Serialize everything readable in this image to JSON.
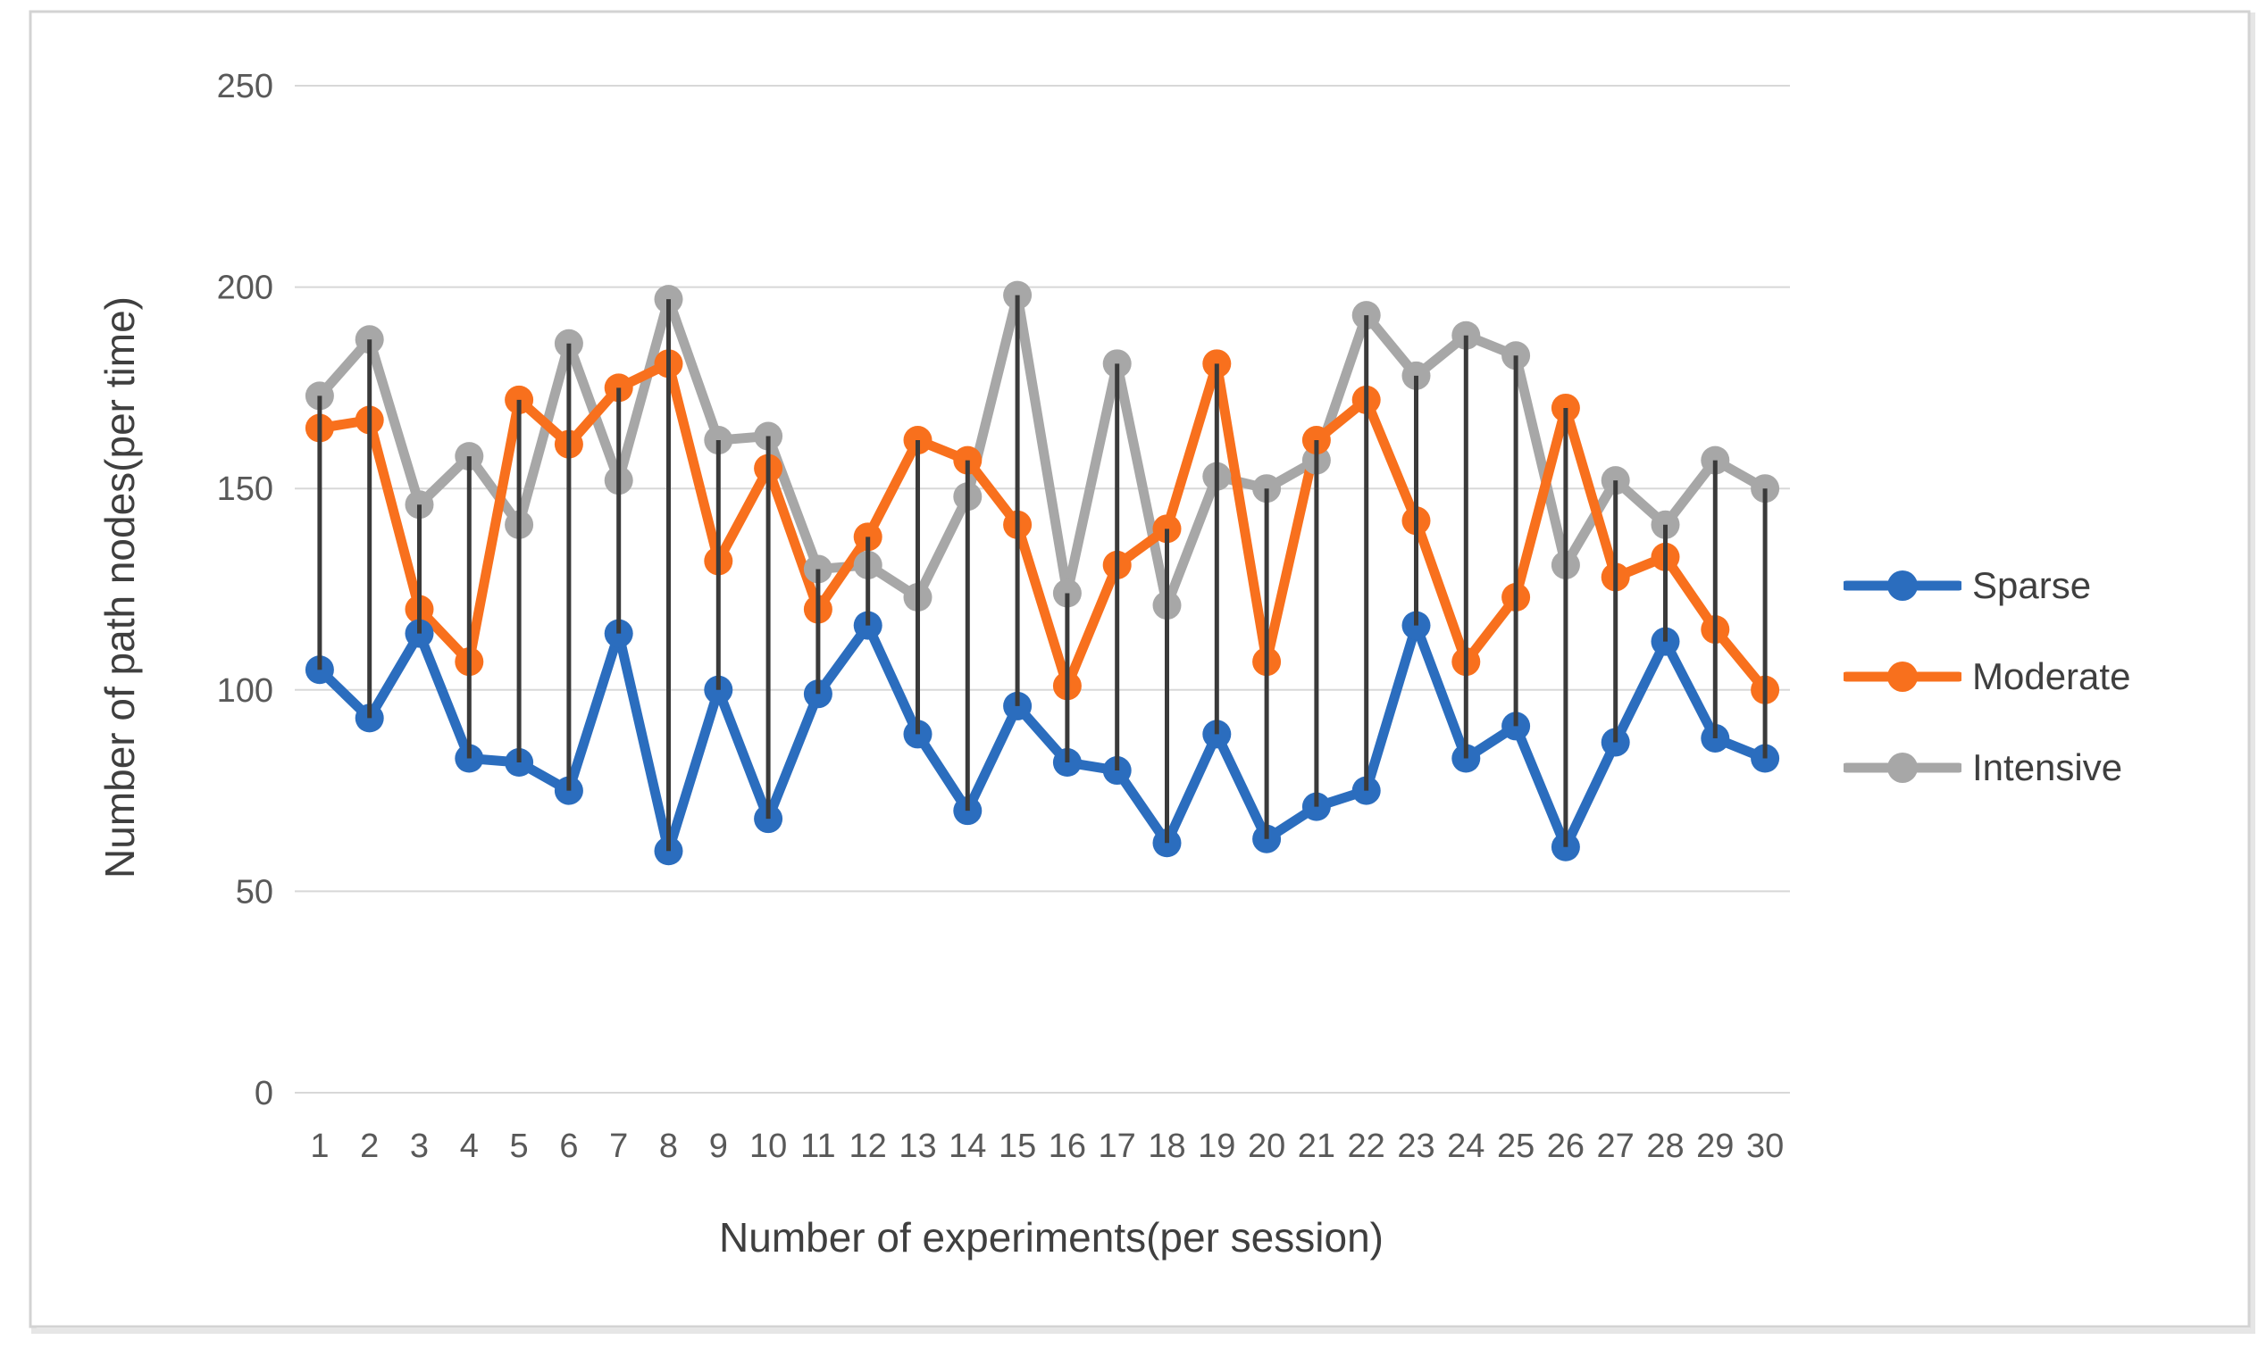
{
  "chart_data": {
    "type": "line",
    "title": "",
    "xlabel": "Number of experiments(per session)",
    "ylabel": "Number of path nodes(per time)",
    "x": [
      1,
      2,
      3,
      4,
      5,
      6,
      7,
      8,
      9,
      10,
      11,
      12,
      13,
      14,
      15,
      16,
      17,
      18,
      19,
      20,
      21,
      22,
      23,
      24,
      25,
      26,
      27,
      28,
      29,
      30
    ],
    "ylim": [
      0,
      250
    ],
    "y_ticks": [
      0,
      50,
      100,
      150,
      200,
      250
    ],
    "grid": true,
    "legend_position": "right",
    "high_low_lines": true,
    "marker": "circle",
    "series": [
      {
        "name": "Sparse",
        "color": "#2B6DBE",
        "values": [
          105,
          93,
          114,
          83,
          82,
          75,
          114,
          60,
          100,
          68,
          99,
          116,
          89,
          70,
          96,
          82,
          80,
          62,
          89,
          63,
          71,
          75,
          116,
          83,
          91,
          61,
          87,
          112,
          88,
          83
        ]
      },
      {
        "name": "Moderate",
        "color": "#F8701D",
        "values": [
          165,
          167,
          120,
          107,
          172,
          161,
          175,
          181,
          132,
          155,
          120,
          138,
          162,
          157,
          141,
          101,
          131,
          140,
          181,
          107,
          162,
          172,
          142,
          107,
          123,
          170,
          128,
          133,
          115,
          100
        ]
      },
      {
        "name": "Intensive",
        "color": "#A7A7A7",
        "values": [
          173,
          187,
          146,
          158,
          141,
          186,
          152,
          197,
          162,
          163,
          130,
          131,
          123,
          148,
          198,
          124,
          181,
          121,
          153,
          150,
          157,
          193,
          178,
          188,
          183,
          131,
          152,
          141,
          157,
          150
        ]
      }
    ],
    "grid_color": "#D8D8D8",
    "high_low_line_color": "#3A3A3A",
    "tick_label_color": "#595959",
    "axis_title_color": "#3F3F3F",
    "border_color": "#D3D3D3"
  }
}
